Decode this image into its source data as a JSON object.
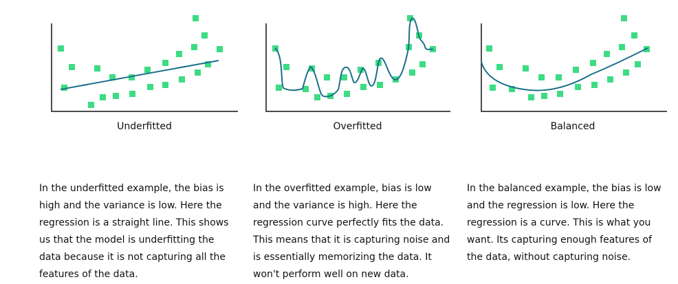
{
  "panels": [
    {
      "title": "Underfitted",
      "description": "In the underfitted example, the bias is high and the variance is low. Here the regression is a straight line. This shows us that the model is underfitting the data because it is not capturing all the features of the data.",
      "description_lines": [
        "In the underfitted example, the bias is",
        "high and the variance is low. Here the",
        "regression is a straight line. This shows",
        "us that the model is underfitting the",
        "data because it is not capturing all the",
        "features of the data."
      ]
    },
    {
      "title": "Overfitted",
      "description": "In the overfitted example, bias is low and the variance is high. Here the regression curve perfectly fits the data. This means that it is capturing noise and is essentially memorizing the data. It won't perform well on new data.",
      "description_lines": [
        "In the overfitted example, bias is low",
        "and the variance is high. Here the",
        "regression curve perfectly fits the data.",
        "This means that it is capturing noise and",
        "is essentially memorizing the data. It",
        "won't perform well on new data."
      ]
    },
    {
      "title": "Balanced",
      "description": "In the balanced example, the bias is low and the regression is low. Here the regression is a curve. This is what you want. Its capturing enough features of the data, without capturing noise.",
      "description_lines": [
        "In the balanced example, the bias is low",
        "and the regression is low. Here the",
        "regression is a curve. This is what you",
        "want. Its capturing enough features of",
        "the data, without capturing noise."
      ]
    }
  ],
  "colors": {
    "point": "#3ddc84",
    "curve": "#1b6f8a",
    "axis": "#111111"
  }
}
